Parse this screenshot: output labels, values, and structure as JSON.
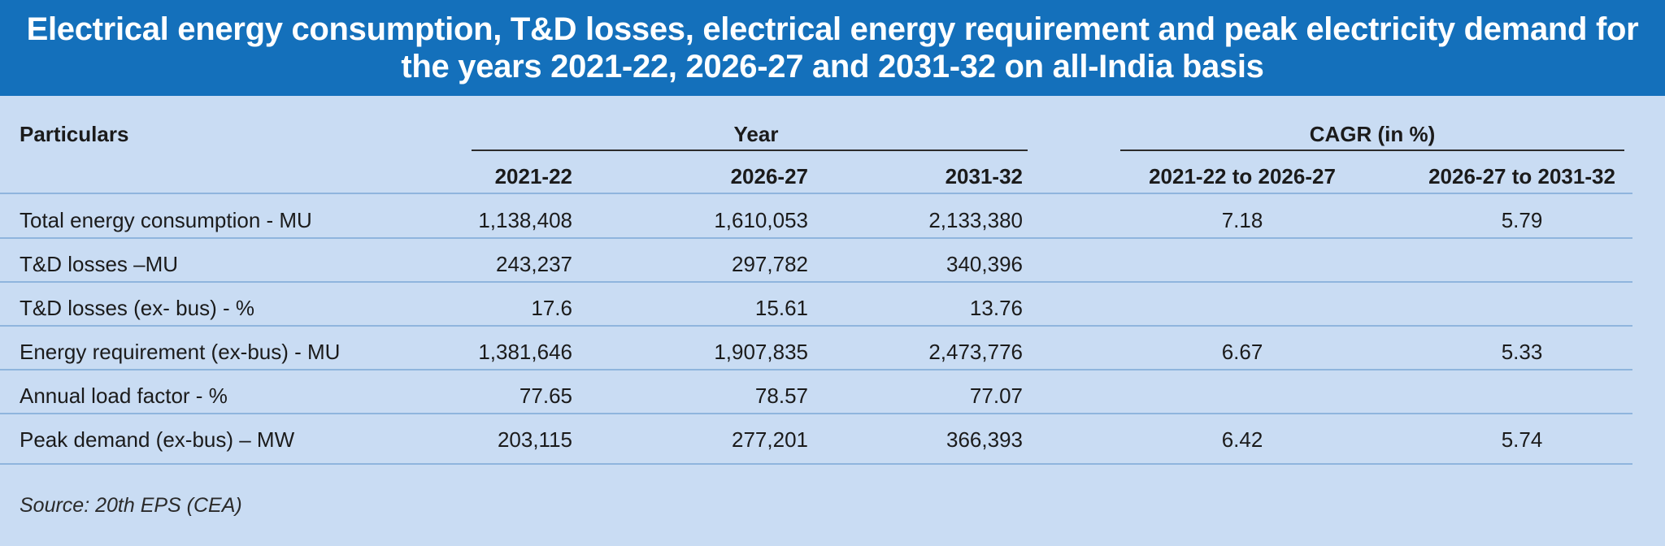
{
  "title": "Electrical energy consumption, T&D losses, electrical energy requirement and peak electricity demand for the years 2021-22, 2026-27 and 2031-32 on all-India basis",
  "header": {
    "particulars": "Particulars",
    "year_group": "Year",
    "cagr_group": "CAGR (in %)",
    "years": [
      "2021-22",
      "2026-27",
      "2031-32"
    ],
    "cagr_cols": [
      "2021-22 to 2026-27",
      "2026-27 to 2031-32"
    ]
  },
  "rows": [
    {
      "label": "Total energy consumption - MU",
      "values": [
        "1,138,408",
        "1,610,053",
        "2,133,380"
      ],
      "cagr": [
        "7.18",
        "5.79"
      ]
    },
    {
      "label": "T&D losses –MU",
      "values": [
        "243,237",
        "297,782",
        "340,396"
      ],
      "cagr": [
        "",
        ""
      ]
    },
    {
      "label": "T&D losses (ex- bus) - %",
      "values": [
        "17.6",
        "15.61",
        "13.76"
      ],
      "cagr": [
        "",
        ""
      ]
    },
    {
      "label": "Energy requirement (ex-bus) - MU",
      "values": [
        "1,381,646",
        "1,907,835",
        "2,473,776"
      ],
      "cagr": [
        "6.67",
        "5.33"
      ]
    },
    {
      "label": "Annual load factor - %",
      "values": [
        "77.65",
        "78.57",
        "77.07"
      ],
      "cagr": [
        "",
        ""
      ]
    },
    {
      "label": "Peak demand (ex-bus) – MW",
      "values": [
        "203,115",
        "277,201",
        "366,393"
      ],
      "cagr": [
        "6.42",
        "5.74"
      ]
    }
  ],
  "source": "Source: 20th EPS (CEA)",
  "colors": {
    "title_bg": "#1470bb",
    "panel_bg": "#c9dcf3",
    "rule": "#8fb5dd"
  }
}
